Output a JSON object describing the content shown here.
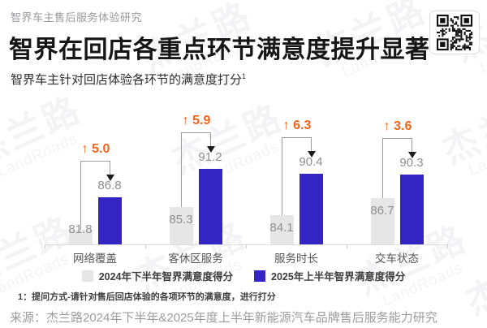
{
  "header": {
    "kicker": "智界车主售后服务体验研究",
    "title": "智界在回店各重点环节满意度提升显著",
    "subtitle": "智界车主针对回店体验各环节的满意度打分",
    "subtitle_sup": "1"
  },
  "qr": {
    "label": "qr-code"
  },
  "chart_data": {
    "type": "bar",
    "categories": [
      "网络覆盖",
      "客休区服务",
      "服务时长",
      "交车状态"
    ],
    "series": [
      {
        "name": "2024年下半年智界满意度得分",
        "values": [
          81.8,
          85.3,
          84.1,
          86.7
        ],
        "color": "#e6e6e6"
      },
      {
        "name": "2025年上半年智界满意度得分",
        "values": [
          86.8,
          91.2,
          90.4,
          90.3
        ],
        "color": "#3424c4"
      }
    ],
    "deltas": [
      "5.0",
      "5.9",
      "6.3",
      "3.6"
    ],
    "delta_prefix": "↑",
    "delta_color": "#f2641e",
    "value_label_color": "#8f8f8f",
    "axis": {
      "hidden_value_axis": true,
      "approx_range": [
        79.5,
        95
      ],
      "gridlines": false
    },
    "legend_position": "bottom"
  },
  "footnote": "1：提问方式-请针对售后回店体验的各项环节的满意度，进行打分",
  "source": "来源：杰兰路2024年下半年&2025年度上半年新能源汽车品牌售后服务能力研究",
  "watermark": {
    "cn": "杰兰路",
    "en": "LandRoads"
  }
}
